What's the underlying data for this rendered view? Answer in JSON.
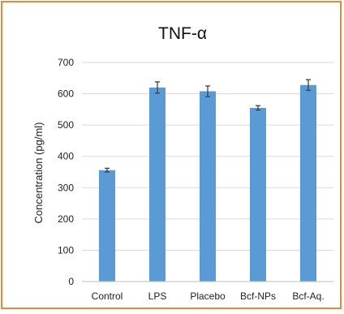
{
  "chart_data": {
    "type": "bar",
    "title": "TNF-α",
    "xlabel": "",
    "ylabel": "Concentration (pg/ml)",
    "categories": [
      "Control",
      "LPS",
      "Placebo",
      "Bcf-NPs",
      "Bcf-Aq."
    ],
    "values": [
      356,
      620,
      608,
      555,
      628
    ],
    "errors": [
      6,
      18,
      17,
      7,
      17
    ],
    "ylim": [
      0,
      700
    ],
    "yticks": [
      0,
      100,
      200,
      300,
      400,
      500,
      600,
      700
    ],
    "grid": true,
    "legend": "none",
    "bar_color": "#5b9bd5",
    "error_color": "#404040",
    "grid_color": "#d9d9d9"
  }
}
